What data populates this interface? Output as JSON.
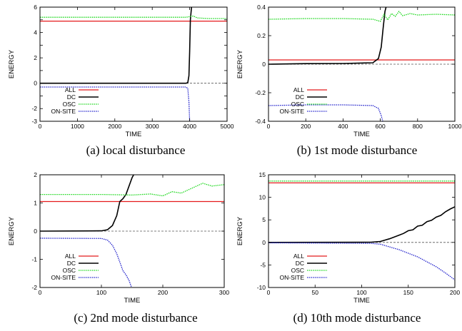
{
  "colors": {
    "ALL": "#e41a1c",
    "DC": "#000000",
    "OSC": "#1bd71b",
    "ON-SITE": "#2222cc",
    "zero": "#555555"
  },
  "chart_data": [
    {
      "type": "line",
      "caption": "(a) local disturbance",
      "xlabel": "TIME",
      "ylabel": "ENERGY",
      "xlim": [
        0,
        5000
      ],
      "ylim": [
        -3,
        6
      ],
      "xticks": [
        0,
        1000,
        2000,
        3000,
        4000,
        5000
      ],
      "yticks": [
        -3,
        -2,
        -1,
        0,
        1,
        2,
        3,
        4,
        5,
        6
      ],
      "ytick_labels": [
        "-3",
        "-2",
        "",
        "0",
        "",
        "2",
        "",
        "4",
        "",
        "6"
      ],
      "legend_position": "bottom-left",
      "series": [
        {
          "name": "ALL",
          "style": "solid",
          "x": [
            0,
            5000
          ],
          "y": [
            4.9,
            4.9
          ]
        },
        {
          "name": "DC",
          "style": "solid",
          "x": [
            0,
            3900,
            3950,
            3980,
            4000,
            4020,
            4050
          ],
          "y": [
            0,
            0,
            0.05,
            0.6,
            2.5,
            5.0,
            6.0
          ]
        },
        {
          "name": "OSC",
          "style": "dotted",
          "x": [
            0,
            1000,
            2000,
            3000,
            3900,
            4100,
            4200,
            4500,
            5000
          ],
          "y": [
            5.2,
            5.2,
            5.2,
            5.2,
            5.2,
            5.3,
            5.15,
            5.1,
            5.1
          ]
        },
        {
          "name": "ON-SITE",
          "style": "dotted",
          "x": [
            0,
            3900,
            3950,
            3980,
            4000
          ],
          "y": [
            -0.3,
            -0.3,
            -0.4,
            -1.5,
            -3.0
          ]
        }
      ]
    },
    {
      "type": "line",
      "caption": "(b) 1st mode disturbance",
      "xlabel": "TIME",
      "ylabel": "ENERGY",
      "xlim": [
        0,
        1000
      ],
      "ylim": [
        -0.4,
        0.4
      ],
      "xticks": [
        0,
        200,
        400,
        600,
        800,
        1000
      ],
      "yticks": [
        -0.4,
        -0.2,
        0,
        0.2,
        0.4
      ],
      "ytick_labels": [
        "-0.4",
        "-0.2",
        "0",
        "0.2",
        "0.4"
      ],
      "legend_position": "bottom-left",
      "series": [
        {
          "name": "ALL",
          "style": "solid",
          "x": [
            0,
            1000
          ],
          "y": [
            0.03,
            0.03
          ]
        },
        {
          "name": "DC",
          "style": "solid",
          "x": [
            0,
            200,
            400,
            560,
            590,
            605,
            615,
            625,
            635
          ],
          "y": [
            0,
            0.004,
            0.005,
            0.01,
            0.04,
            0.12,
            0.25,
            0.37,
            0.42
          ]
        },
        {
          "name": "OSC",
          "style": "dotted",
          "x": [
            0,
            200,
            400,
            560,
            600,
            620,
            640,
            660,
            680,
            700,
            720,
            760,
            800,
            900,
            1000
          ],
          "y": [
            0.315,
            0.32,
            0.32,
            0.315,
            0.3,
            0.35,
            0.31,
            0.355,
            0.335,
            0.37,
            0.34,
            0.355,
            0.345,
            0.35,
            0.345
          ]
        },
        {
          "name": "ON-SITE",
          "style": "dotted",
          "x": [
            0,
            200,
            400,
            560,
            590,
            605,
            615
          ],
          "y": [
            -0.29,
            -0.285,
            -0.285,
            -0.29,
            -0.31,
            -0.36,
            -0.41
          ]
        }
      ]
    },
    {
      "type": "line",
      "caption": "(c) 2nd mode disturbance",
      "xlabel": "TIME",
      "ylabel": "ENERGY",
      "xlim": [
        0,
        300
      ],
      "ylim": [
        -2,
        2
      ],
      "xticks": [
        0,
        100,
        200,
        300
      ],
      "yticks": [
        -2,
        -1,
        0,
        1,
        2
      ],
      "ytick_labels": [
        "-2",
        "-1",
        "0",
        "1",
        "2"
      ],
      "legend_position": "bottom-left",
      "series": [
        {
          "name": "ALL",
          "style": "solid",
          "x": [
            0,
            300
          ],
          "y": [
            1.05,
            1.05
          ]
        },
        {
          "name": "DC",
          "style": "solid",
          "x": [
            0,
            100,
            110,
            118,
            125,
            130,
            135,
            140,
            145,
            150,
            155
          ],
          "y": [
            0,
            0.01,
            0.05,
            0.2,
            0.55,
            1.05,
            1.15,
            1.3,
            1.6,
            1.9,
            2.1
          ]
        },
        {
          "name": "OSC",
          "style": "dotted",
          "x": [
            0,
            100,
            150,
            180,
            200,
            215,
            230,
            250,
            265,
            280,
            300
          ],
          "y": [
            1.3,
            1.3,
            1.28,
            1.32,
            1.25,
            1.4,
            1.35,
            1.55,
            1.7,
            1.6,
            1.65
          ]
        },
        {
          "name": "ON-SITE",
          "style": "dotted",
          "x": [
            0,
            100,
            110,
            118,
            125,
            130,
            135,
            140,
            145,
            150
          ],
          "y": [
            -0.25,
            -0.26,
            -0.32,
            -0.5,
            -0.8,
            -1.1,
            -1.4,
            -1.55,
            -1.75,
            -2.05
          ]
        }
      ]
    },
    {
      "type": "line",
      "caption": "(d) 10th mode disturbance",
      "xlabel": "TIME",
      "ylabel": "ENERGY",
      "xlim": [
        0,
        200
      ],
      "ylim": [
        -10,
        15
      ],
      "xticks": [
        0,
        50,
        100,
        150,
        200
      ],
      "yticks": [
        -10,
        -5,
        0,
        5,
        10,
        15
      ],
      "ytick_labels": [
        "-10",
        "-5",
        "0",
        "5",
        "10",
        "15"
      ],
      "legend_position": "bottom-left",
      "series": [
        {
          "name": "ALL",
          "style": "solid",
          "x": [
            0,
            200
          ],
          "y": [
            13.2,
            13.2
          ]
        },
        {
          "name": "DC",
          "style": "solid",
          "x": [
            0,
            110,
            120,
            130,
            140,
            145,
            150,
            155,
            160,
            165,
            170,
            175,
            180,
            185,
            190,
            195,
            200
          ],
          "y": [
            0,
            0.05,
            0.2,
            0.8,
            1.6,
            2.0,
            2.6,
            2.8,
            3.6,
            3.8,
            4.6,
            4.9,
            5.6,
            6.0,
            6.8,
            7.4,
            7.9
          ]
        },
        {
          "name": "OSC",
          "style": "dotted",
          "x": [
            0,
            200
          ],
          "y": [
            13.6,
            13.6
          ]
        },
        {
          "name": "ON-SITE",
          "style": "dotted",
          "x": [
            0,
            110,
            120,
            130,
            140,
            150,
            160,
            170,
            180,
            190,
            200
          ],
          "y": [
            -0.1,
            -0.2,
            -0.4,
            -1.0,
            -1.6,
            -2.4,
            -3.2,
            -4.3,
            -5.4,
            -6.8,
            -8.3
          ]
        }
      ]
    }
  ]
}
